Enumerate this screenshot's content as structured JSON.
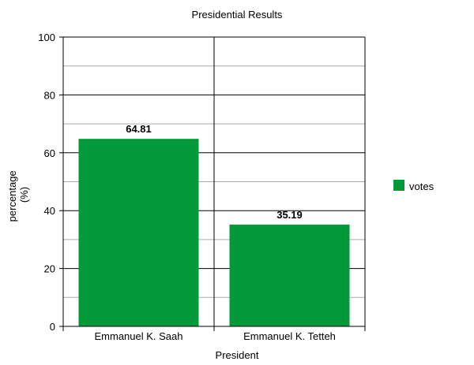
{
  "chart_data": {
    "type": "bar",
    "title": "Presidential Results",
    "xlabel": "President",
    "ylabel": "percentage\n(%)",
    "categories": [
      "Emmanuel K. Saah",
      "Emmanuel K. Tetteh"
    ],
    "series": [
      {
        "name": "votes",
        "values": [
          64.81,
          35.19
        ],
        "color": "#029938"
      }
    ],
    "data_labels": [
      "64.81",
      "35.19"
    ],
    "ylim": [
      0,
      100
    ],
    "yticks": [
      0,
      20,
      40,
      60,
      80,
      100
    ],
    "grid": true,
    "legend_position": "right"
  }
}
